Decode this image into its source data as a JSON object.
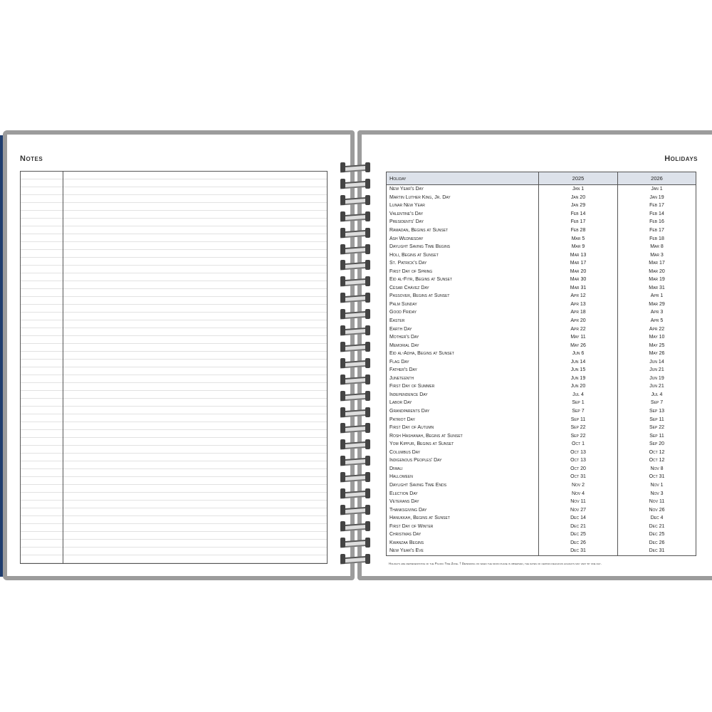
{
  "left_page": {
    "title": "Notes"
  },
  "right_page": {
    "title": "Holidays",
    "table": {
      "headers": [
        "Holiday",
        "2025",
        "2026"
      ],
      "rows": [
        [
          "New Year's Day",
          "Jan 1",
          "Jan 1"
        ],
        [
          "Martin Luther King, Jr. Day",
          "Jan 20",
          "Jan 19"
        ],
        [
          "Lunar New Year",
          "Jan 29",
          "Feb 17"
        ],
        [
          "Valentine's Day",
          "Feb 14",
          "Feb 14"
        ],
        [
          "Presidents' Day",
          "Feb 17",
          "Feb 16"
        ],
        [
          "Ramadan, Begins at Sunset",
          "Feb 28",
          "Feb 17"
        ],
        [
          "Ash Wednesday",
          "Mar 5",
          "Feb 18"
        ],
        [
          "Daylight Saving Time Begins",
          "Mar 9",
          "Mar 8"
        ],
        [
          "Holi, Begins at Sunset",
          "Mar 13",
          "Mar 3"
        ],
        [
          "St. Patrick's Day",
          "Mar 17",
          "Mar 17"
        ],
        [
          "First Day of Spring",
          "Mar 20",
          "Mar 20"
        ],
        [
          "Eid al-Fitr, Begins at Sunset",
          "Mar 30",
          "Mar 19"
        ],
        [
          "César Chávez Day",
          "Mar 31",
          "Mar 31"
        ],
        [
          "Passover, Begins at Sunset",
          "Apr 12",
          "Apr 1"
        ],
        [
          "Palm Sunday",
          "Apr 13",
          "Mar 29"
        ],
        [
          "Good Friday",
          "Apr 18",
          "Apr 3"
        ],
        [
          "Easter",
          "Apr 20",
          "Apr 5"
        ],
        [
          "Earth Day",
          "Apr 22",
          "Apr 22"
        ],
        [
          "Mother's Day",
          "May 11",
          "May 10"
        ],
        [
          "Memorial Day",
          "May 26",
          "May 25"
        ],
        [
          "Eid al-Adha, Begins at Sunset",
          "Jun 6",
          "May 26"
        ],
        [
          "Flag Day",
          "Jun 14",
          "Jun 14"
        ],
        [
          "Father's Day",
          "Jun 15",
          "Jun 21"
        ],
        [
          "Juneteenth",
          "Jun 19",
          "Jun 19"
        ],
        [
          "First Day of Summer",
          "Jun 20",
          "Jun 21"
        ],
        [
          "Independence Day",
          "Jul 4",
          "Jul 4"
        ],
        [
          "Labor Day",
          "Sep 1",
          "Sep 7"
        ],
        [
          "Grandparents Day",
          "Sep 7",
          "Sep 13"
        ],
        [
          "Patriot Day",
          "Sep 11",
          "Sep 11"
        ],
        [
          "First Day of Autumn",
          "Sep 22",
          "Sep 22"
        ],
        [
          "Rosh Hashanah, Begins at Sunset",
          "Sep 22",
          "Sep 11"
        ],
        [
          "Yom Kippur, Begins at Sunset",
          "Oct 1",
          "Sep 20"
        ],
        [
          "Columbus Day",
          "Oct 13",
          "Oct 12"
        ],
        [
          "Indigenous Peoples' Day",
          "Oct 13",
          "Oct 12"
        ],
        [
          "Diwali",
          "Oct 20",
          "Nov 8"
        ],
        [
          "Halloween",
          "Oct 31",
          "Oct 31"
        ],
        [
          "Daylight Saving Time Ends",
          "Nov 2",
          "Nov 1"
        ],
        [
          "Election Day",
          "Nov 4",
          "Nov 3"
        ],
        [
          "Veterans Day",
          "Nov 11",
          "Nov 11"
        ],
        [
          "Thanksgiving Day",
          "Nov 27",
          "Nov 26"
        ],
        [
          "Hanukkah, Begins at Sunset",
          "Dec 14",
          "Dec 4"
        ],
        [
          "First Day of Winter",
          "Dec 21",
          "Dec 21"
        ],
        [
          "Christmas Day",
          "Dec 25",
          "Dec 25"
        ],
        [
          "Kwanzaa Begins",
          "Dec 26",
          "Dec 26"
        ],
        [
          "New Year's Eve",
          "Dec 31",
          "Dec 31"
        ]
      ]
    },
    "footnote": "Holidays are representative of the Pacific Time Zone.   †  Depending on when the moon phase is observed, the dates of certain religious holidays may vary by one day."
  },
  "colors": {
    "cover": "#1f3d6e",
    "page_border": "#9c9c9c",
    "header_fill": "#dde2ea"
  }
}
